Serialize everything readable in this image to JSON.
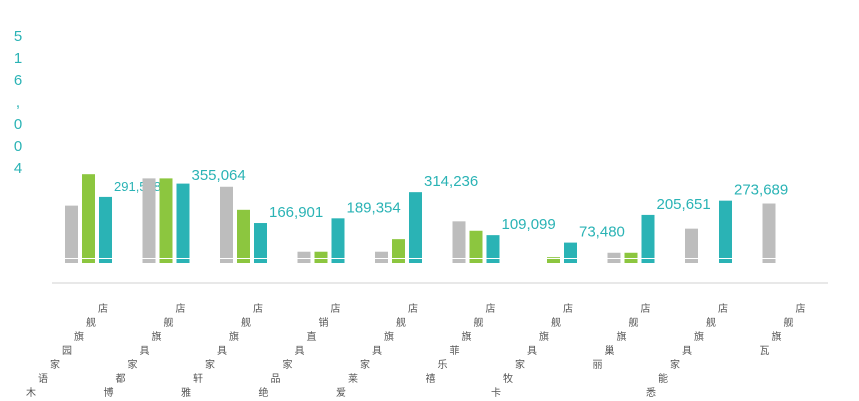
{
  "chart_data": {
    "type": "bar",
    "title": "",
    "side_value": "516,004",
    "series": [
      {
        "name": "",
        "color": "#bdbdbd",
        "values": [
          250000,
          380000,
          340000,
          30000,
          30000,
          175000,
          0,
          25000,
          140000,
          260000
        ]
      },
      {
        "name": "",
        "color": "#8cc63f",
        "values": [
          400000,
          380000,
          230000,
          30000,
          90000,
          130000,
          4000,
          25000,
          0,
          0
        ]
      },
      {
        "name": "",
        "color": "#2ab3b5",
        "values": [
          291588,
          355064,
          166901,
          189354,
          314236,
          109099,
          73480,
          205651,
          273689,
          0
        ]
      }
    ],
    "data_labels": [
      "291,588",
      "355,064",
      "166,901",
      "189,354",
      "314,236",
      "109,099",
      "73,480",
      "205,651",
      "273,689"
    ],
    "categories": [
      "木语家园旗舰店",
      "博都家具旗舰店",
      "雅轩家具旗舰店",
      "绝品家具直销店",
      "爱莱家具旗舰店",
      "禧乐菲旗舰店",
      "卡牧家具旗舰店",
      "丽巢旗舰店",
      "悉能家具旗舰店",
      "瓦旗舰店"
    ],
    "ylim": [
      0,
      420000
    ],
    "grid": false,
    "legend": "none"
  },
  "colors": {
    "accent": "#2ab3b5",
    "axis": "#d0d0d0",
    "category_text": "#555555"
  }
}
